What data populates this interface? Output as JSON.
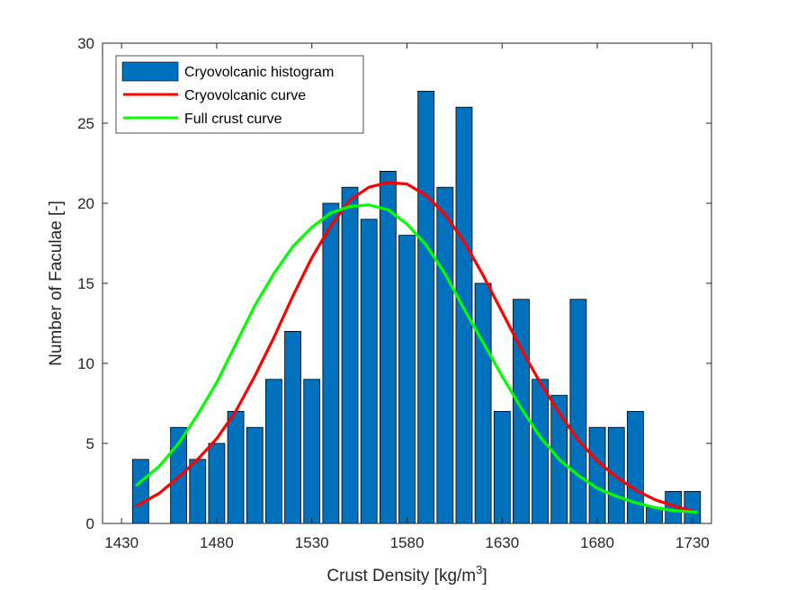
{
  "chart_data": {
    "type": "bar",
    "xlabel": "Crust Density [kg/m",
    "xlabel_superscript": "3",
    "xlabel_suffix": "]",
    "ylabel": "Number of Faculae [-]",
    "xlim": [
      1420,
      1740
    ],
    "ylim": [
      0,
      30
    ],
    "x_ticks": [
      1430,
      1480,
      1530,
      1580,
      1630,
      1680,
      1730
    ],
    "y_ticks": [
      0,
      5,
      10,
      15,
      20,
      25,
      30
    ],
    "grid": false,
    "legend_position": "top-left",
    "bar_width": 8.5,
    "series": [
      {
        "name": "Cryovolcanic histogram",
        "type": "bar",
        "color": "#0072BD",
        "x": [
          1440,
          1450,
          1460,
          1470,
          1480,
          1490,
          1500,
          1510,
          1520,
          1530,
          1540,
          1550,
          1560,
          1570,
          1580,
          1590,
          1600,
          1610,
          1620,
          1630,
          1640,
          1650,
          1660,
          1670,
          1680,
          1690,
          1700,
          1710,
          1720,
          1730
        ],
        "values": [
          4,
          0,
          6,
          4,
          5,
          7,
          6,
          9,
          12,
          9,
          20,
          21,
          19,
          22,
          18,
          27,
          21,
          26,
          15,
          7,
          14,
          9,
          8,
          14,
          6,
          6,
          7,
          1,
          2,
          2
        ]
      },
      {
        "name": "Cryovolcanic curve",
        "type": "line",
        "color": "#FF0000",
        "x": [
          1438,
          1450,
          1460,
          1470,
          1480,
          1490,
          1500,
          1510,
          1520,
          1530,
          1540,
          1550,
          1560,
          1570,
          1580,
          1590,
          1600,
          1610,
          1620,
          1630,
          1640,
          1650,
          1660,
          1670,
          1680,
          1690,
          1700,
          1710,
          1720,
          1732
        ],
        "values": [
          1.1,
          1.9,
          2.9,
          4.0,
          5.3,
          7.0,
          9.2,
          11.6,
          14.2,
          16.6,
          18.6,
          20.2,
          21.0,
          21.3,
          21.2,
          20.5,
          19.3,
          17.6,
          15.5,
          13.2,
          10.9,
          8.8,
          6.9,
          5.2,
          3.9,
          2.9,
          2.1,
          1.5,
          1.1,
          0.7
        ]
      },
      {
        "name": "Full crust curve",
        "type": "line",
        "color": "#00FF00",
        "x": [
          1438,
          1450,
          1460,
          1470,
          1480,
          1490,
          1500,
          1510,
          1520,
          1530,
          1540,
          1550,
          1560,
          1570,
          1580,
          1590,
          1600,
          1610,
          1620,
          1630,
          1640,
          1650,
          1660,
          1670,
          1680,
          1690,
          1700,
          1710,
          1720,
          1732
        ],
        "values": [
          2.4,
          3.6,
          5.0,
          6.8,
          8.8,
          11.2,
          13.6,
          15.6,
          17.3,
          18.5,
          19.4,
          19.8,
          19.9,
          19.6,
          18.7,
          17.4,
          15.6,
          13.4,
          11.3,
          9.2,
          7.2,
          5.4,
          4.0,
          3.0,
          2.2,
          1.7,
          1.3,
          1.0,
          0.8,
          0.7
        ]
      }
    ]
  }
}
